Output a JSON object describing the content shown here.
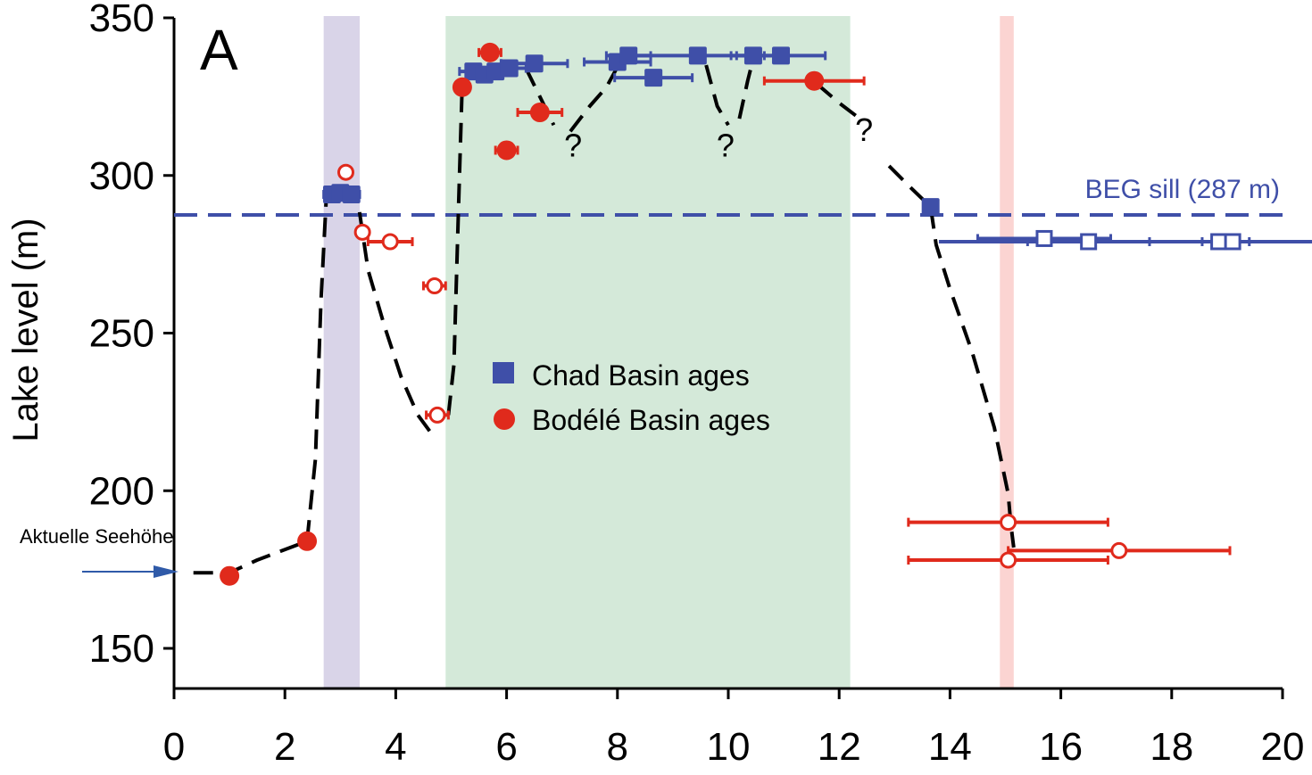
{
  "chart_data": {
    "type": "scatter",
    "panel_label": "A",
    "ylabel": "Lake level (m)",
    "xlabel": "",
    "xlim": [
      0,
      20
    ],
    "ylim": [
      150,
      350
    ],
    "xticks": [
      0,
      2,
      4,
      6,
      8,
      10,
      12,
      14,
      16,
      18,
      20
    ],
    "yticks": [
      150,
      200,
      250,
      300,
      350
    ],
    "grid": false,
    "legend_position": "center",
    "colors": {
      "chad": "#3f4fa8",
      "bodele": "#e02a1c",
      "purple_band": "#d9d4e8",
      "green_band": "#d4e9d9",
      "pink_band": "#fbd4d2"
    },
    "bands": [
      {
        "name": "purple",
        "x": [
          2.7,
          3.35
        ]
      },
      {
        "name": "green",
        "x": [
          4.9,
          12.2
        ]
      },
      {
        "name": "pink",
        "x": [
          14.9,
          15.15
        ]
      }
    ],
    "sill": {
      "label": "BEG sill (287 m)",
      "y": 287.5
    },
    "lower_threshold": {
      "y": 279,
      "x": [
        13.8,
        20
      ]
    },
    "series": [
      {
        "name": "Chad Basin ages",
        "marker": "square-filled",
        "points": [
          {
            "x": 2.85,
            "y": 294,
            "xerr": 0.15
          },
          {
            "x": 3.0,
            "y": 294.5,
            "xerr": 0.15
          },
          {
            "x": 3.2,
            "y": 294,
            "xerr": 0.15
          },
          {
            "x": 5.4,
            "y": 333,
            "xerr": 0.25
          },
          {
            "x": 5.6,
            "y": 332,
            "xerr": 0.25
          },
          {
            "x": 5.8,
            "y": 333,
            "xerr": 0.25
          },
          {
            "x": 6.05,
            "y": 334,
            "xerr": 0.3
          },
          {
            "x": 6.5,
            "y": 335.5,
            "xerr": 0.6
          },
          {
            "x": 8.0,
            "y": 336,
            "xerr": 0.6
          },
          {
            "x": 8.2,
            "y": 338,
            "xerr": 0.4
          },
          {
            "x": 8.65,
            "y": 331,
            "xerr": 0.7
          },
          {
            "x": 9.45,
            "y": 338,
            "xerr": 1.2
          },
          {
            "x": 10.45,
            "y": 338,
            "xerr": 0.4
          },
          {
            "x": 10.95,
            "y": 338,
            "xerr": 0.8
          },
          {
            "x": 13.65,
            "y": 290,
            "xerr": 0
          }
        ]
      },
      {
        "name": "Bodélé Basin ages",
        "marker": "circle-filled",
        "points": [
          {
            "x": 1.0,
            "y": 173,
            "xerr": 0
          },
          {
            "x": 2.4,
            "y": 184,
            "xerr": 0
          },
          {
            "x": 5.2,
            "y": 328,
            "xerr": 0.1
          },
          {
            "x": 5.7,
            "y": 339,
            "xerr": 0.2
          },
          {
            "x": 6.0,
            "y": 308,
            "xerr": 0.2
          },
          {
            "x": 6.6,
            "y": 320,
            "xerr": 0.4
          },
          {
            "x": 11.55,
            "y": 330,
            "xerr": 0.9
          }
        ]
      },
      {
        "marker": "circle-open",
        "color": "bodele",
        "points": [
          {
            "x": 3.1,
            "y": 301,
            "xerr": 0
          },
          {
            "x": 3.4,
            "y": 282,
            "xerr": 0.1
          },
          {
            "x": 3.9,
            "y": 279,
            "xerr": 0.4
          },
          {
            "x": 4.7,
            "y": 265,
            "xerr": 0.2
          },
          {
            "x": 4.75,
            "y": 224,
            "xerr": 0.2
          },
          {
            "x": 15.05,
            "y": 190,
            "xerr": 1.8
          },
          {
            "x": 15.05,
            "y": 178,
            "xerr": 1.8
          },
          {
            "x": 17.05,
            "y": 181,
            "xerr": 2.0
          }
        ]
      },
      {
        "marker": "square-open",
        "color": "chad",
        "points": [
          {
            "x": 15.7,
            "y": 280,
            "xerr": 1.2
          },
          {
            "x": 16.5,
            "y": 279,
            "xerr": 1.1
          },
          {
            "x": 18.85,
            "y": 279,
            "xerr": 0.3
          },
          {
            "x": 19.1,
            "y": 279,
            "xerr": 0.3
          }
        ]
      }
    ],
    "reconstruction": {
      "style": "dashed",
      "segments": [
        [
          [
            0.35,
            174
          ],
          [
            1.0,
            174
          ],
          [
            1.5,
            178
          ],
          [
            2.4,
            184
          ],
          [
            2.55,
            210
          ],
          [
            2.65,
            260
          ],
          [
            2.75,
            294
          ],
          [
            3.3,
            294
          ],
          [
            3.5,
            270
          ],
          [
            3.8,
            252
          ],
          [
            4.1,
            236
          ],
          [
            4.4,
            224
          ],
          [
            4.65,
            218
          ]
        ],
        [
          [
            4.95,
            224
          ],
          [
            5.05,
            240
          ],
          [
            5.1,
            270
          ],
          [
            5.15,
            300
          ],
          [
            5.2,
            329
          ]
        ],
        [
          [
            6.35,
            334
          ],
          [
            6.6,
            325
          ],
          [
            6.85,
            316
          ]
        ],
        [
          [
            7.15,
            314
          ],
          [
            7.5,
            322
          ],
          [
            7.8,
            328
          ],
          [
            8.05,
            336
          ]
        ],
        [
          [
            9.6,
            335
          ],
          [
            9.8,
            322
          ],
          [
            10.0,
            316
          ]
        ],
        [
          [
            10.2,
            318
          ],
          [
            10.35,
            330
          ],
          [
            10.45,
            337
          ]
        ],
        [
          [
            11.6,
            329
          ],
          [
            12.0,
            323
          ],
          [
            12.3,
            319
          ]
        ],
        [
          [
            12.9,
            303
          ],
          [
            13.3,
            296
          ],
          [
            13.65,
            290
          ],
          [
            13.75,
            278
          ],
          [
            14.0,
            264
          ],
          [
            14.4,
            244
          ],
          [
            14.8,
            220
          ],
          [
            15.05,
            199
          ],
          [
            15.1,
            189
          ],
          [
            15.15,
            182
          ]
        ]
      ]
    },
    "question_marks": [
      {
        "text": "?",
        "x": 7.2,
        "y": 306
      },
      {
        "text": "?",
        "x": 9.95,
        "y": 306
      },
      {
        "text": "?",
        "x": 12.45,
        "y": 311
      }
    ]
  },
  "annotation": {
    "text": "Aktuelle Seehöhe"
  }
}
